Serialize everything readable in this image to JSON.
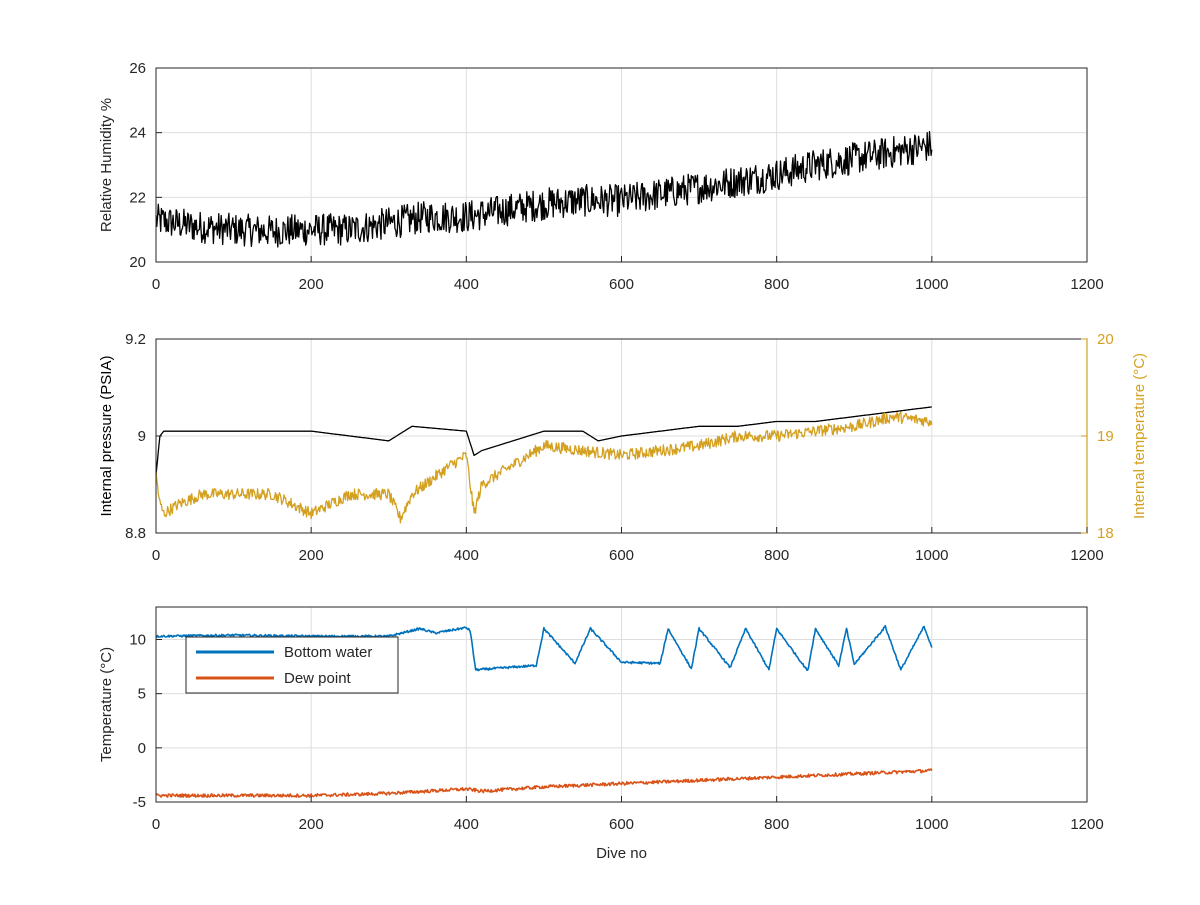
{
  "chart_data": [
    {
      "type": "line",
      "title": "",
      "xlabel": "",
      "ylabel": "Relative Humidity %",
      "xlim": [
        0,
        1200
      ],
      "ylim": [
        20,
        26
      ],
      "xticks": [
        0,
        200,
        400,
        600,
        800,
        1000,
        1200
      ],
      "yticks": [
        20,
        22,
        24,
        26
      ],
      "grid": true,
      "series": [
        {
          "color": "#000000",
          "noise": 0.5,
          "x": [
            0,
            50,
            100,
            150,
            200,
            250,
            300,
            350,
            400,
            450,
            500,
            550,
            600,
            650,
            700,
            750,
            800,
            850,
            900,
            950,
            1000
          ],
          "values": [
            21.3,
            21.1,
            21.0,
            20.95,
            21.0,
            21.0,
            21.2,
            21.4,
            21.4,
            21.6,
            21.8,
            21.9,
            21.9,
            22.1,
            22.3,
            22.5,
            22.7,
            23.0,
            23.2,
            23.4,
            23.6
          ]
        }
      ]
    },
    {
      "type": "line",
      "title": "",
      "xlabel": "",
      "ylabel": "Internal pressure (PSIA)",
      "ylabel_right": "Internal temperature (°C)",
      "xlim": [
        0,
        1200
      ],
      "ylim": [
        8.8,
        9.2
      ],
      "ylim_right": [
        18,
        20
      ],
      "xticks": [
        0,
        200,
        400,
        600,
        800,
        1000,
        1200
      ],
      "yticks": [
        "8.8",
        "9",
        "9.2"
      ],
      "yticks_right": [
        "18",
        "19",
        "20"
      ],
      "grid": true,
      "right_axis_color": "#D4A020",
      "series": [
        {
          "color": "#000000",
          "axis": "left",
          "x": [
            0,
            5,
            10,
            100,
            200,
            300,
            330,
            400,
            410,
            420,
            480,
            500,
            550,
            570,
            600,
            650,
            700,
            750,
            800,
            850,
            900,
            950,
            1000
          ],
          "values": [
            8.92,
            9.0,
            9.01,
            9.01,
            9.01,
            8.99,
            9.02,
            9.01,
            8.96,
            8.97,
            9.0,
            9.01,
            9.01,
            8.99,
            9.0,
            9.01,
            9.02,
            9.02,
            9.03,
            9.03,
            9.04,
            9.05,
            9.06
          ]
        },
        {
          "color": "#D4A020",
          "axis": "right",
          "noise": 0.06,
          "x": [
            0,
            5,
            10,
            30,
            60,
            100,
            150,
            200,
            250,
            300,
            315,
            330,
            380,
            400,
            410,
            420,
            500,
            550,
            600,
            650,
            700,
            750,
            800,
            850,
            900,
            950,
            1000
          ],
          "values": [
            18.6,
            18.3,
            18.2,
            18.3,
            18.4,
            18.4,
            18.4,
            18.2,
            18.4,
            18.4,
            18.15,
            18.4,
            18.7,
            18.8,
            18.2,
            18.5,
            18.9,
            18.85,
            18.8,
            18.85,
            18.9,
            19.0,
            19.0,
            19.05,
            19.1,
            19.2,
            19.15
          ]
        }
      ]
    },
    {
      "type": "line",
      "title": "",
      "xlabel": "Dive no",
      "ylabel": "Temperature (°C)",
      "xlim": [
        0,
        1200
      ],
      "ylim": [
        -5,
        13
      ],
      "xticks": [
        0,
        200,
        400,
        600,
        800,
        1000,
        1200
      ],
      "yticks": [
        -5,
        0,
        5,
        10
      ],
      "grid": true,
      "legend": "top-left",
      "series": [
        {
          "name": "Bottom water",
          "color": "#0072BD",
          "noise": 0.1,
          "x": [
            0,
            100,
            200,
            300,
            340,
            360,
            400,
            405,
            412,
            490,
            500,
            540,
            560,
            600,
            650,
            660,
            690,
            700,
            740,
            760,
            790,
            800,
            840,
            850,
            880,
            890,
            900,
            940,
            960,
            990,
            1000
          ],
          "values": [
            10.3,
            10.4,
            10.3,
            10.3,
            11.0,
            10.6,
            11.1,
            10.8,
            7.2,
            7.6,
            11.0,
            7.8,
            11.0,
            7.9,
            7.8,
            11.0,
            7.3,
            11.0,
            7.4,
            11.0,
            7.2,
            11.0,
            7.1,
            11.0,
            7.6,
            11.0,
            7.7,
            11.2,
            7.2,
            11.2,
            9.3
          ]
        },
        {
          "name": "Dew point",
          "color": "#D95319",
          "noise": 0.15,
          "x": [
            0,
            100,
            200,
            260,
            300,
            350,
            400,
            420,
            500,
            600,
            700,
            800,
            900,
            1000
          ],
          "values": [
            -4.4,
            -4.4,
            -4.4,
            -4.3,
            -4.2,
            -4.0,
            -3.8,
            -4.0,
            -3.6,
            -3.3,
            -3.0,
            -2.7,
            -2.4,
            -2.1
          ]
        }
      ]
    }
  ]
}
